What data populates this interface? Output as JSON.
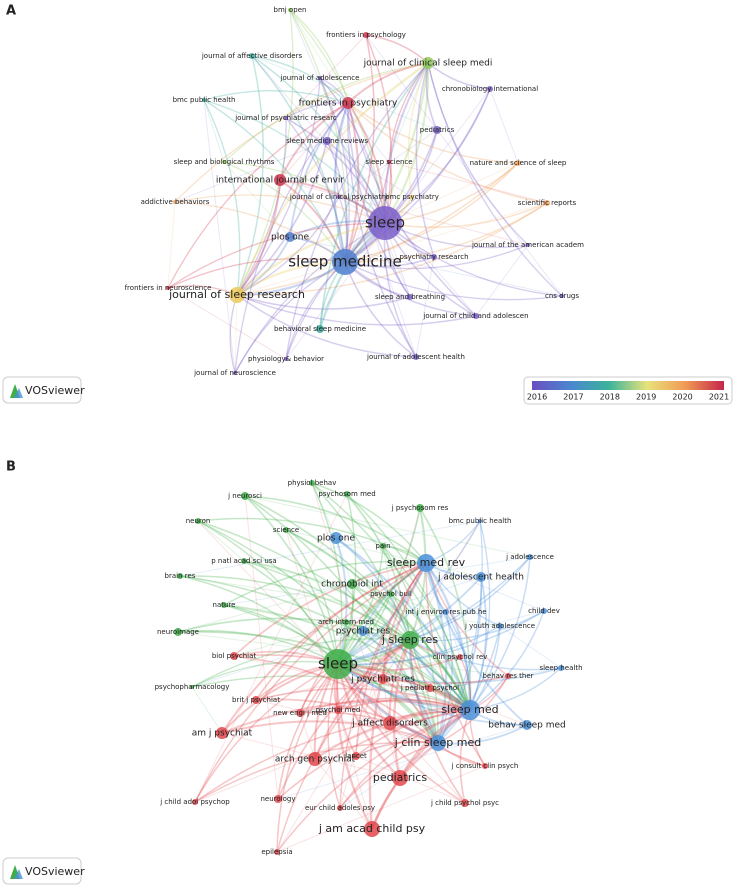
{
  "panels": [
    {
      "label": "A",
      "logo": "VOSviewer",
      "nodes": [
        "bmj open",
        "frontiers in psychology",
        "journal of affective disorders",
        "journal of clinical sleep medi",
        "journal of adolescence",
        "chronobiology international",
        "bmc public health",
        "frontiers in psychiatry",
        "journal of psychiatric researc",
        "pediatrics",
        "sleep medicine reviews",
        "sleep science",
        "nature and science of sleep",
        "sleep and biological rhythms",
        "international journal of envir",
        "bmc psychiatry",
        "journal of clinical psychiatry",
        "addictive behaviors",
        "scientific reports",
        "sleep",
        "plos one",
        "journal of the american academ",
        "sleep medicine",
        "psychiatry research",
        "frontiers in neuroscience",
        "journal of sleep research",
        "sleep and breathing",
        "cns drugs",
        "journal of child and adolescen",
        "behavioral sleep medicine",
        "journal of adolescent health",
        "physiology& behavior",
        "journal of neuroscience"
      ],
      "colorbar": {
        "ticks": [
          2016,
          2017,
          2018,
          2019,
          2020,
          2021
        ]
      }
    },
    {
      "label": "B",
      "logo": "VOSviewer",
      "nodes": [
        "physiol behav",
        "psychosom med",
        "j neurosci",
        "j psychosom res",
        "neuron",
        "science",
        "bmc public health",
        "plos one",
        "pain",
        "j adolescence",
        "sleep med rev",
        "p natl acad sci usa",
        "j adolescent health",
        "brain res",
        "chronobiol int",
        "psychol bull",
        "nature",
        "child dev",
        "int j environ res pub he",
        "arch intern med",
        "j youth adolescence",
        "neuroimage",
        "psychiat res",
        "j sleep res",
        "sleep",
        "clin psychol rev",
        "biol psychiat",
        "sleep health",
        "behav res ther",
        "psychopharmacology",
        "j psychiatr res",
        "j pediatr psychol",
        "brit j psychiat",
        "sleep med",
        "new engl j med",
        "psychol med",
        "am j psychiat",
        "j affect disorders",
        "behav sleep med",
        "j clin sleep med",
        "lancet",
        "arch gen psychiat",
        "j consult clin psych",
        "pediatrics",
        "j child adol psychop",
        "neurology",
        "eur child adoles psy",
        "j child psychol psyc",
        "j am acad child psy",
        "epilepsia"
      ]
    }
  ]
}
